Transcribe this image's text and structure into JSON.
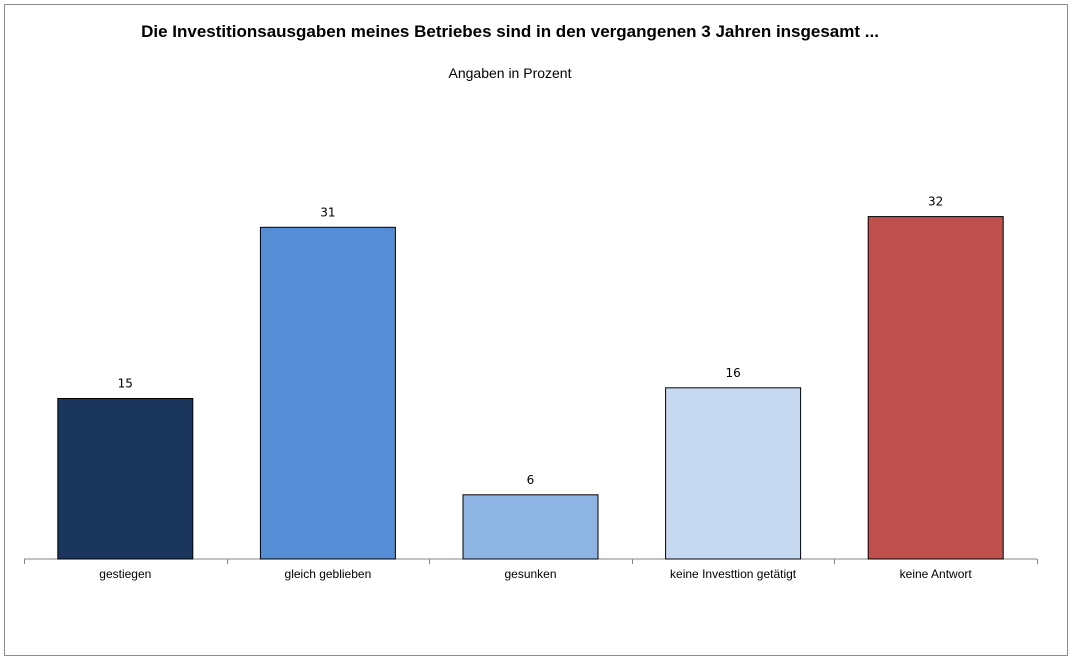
{
  "chart_data": {
    "type": "bar",
    "title": "Die Investitionsausgaben meines Betriebes sind in den vergangenen 3 Jahren insgesamt ...",
    "subtitle": "Angaben in Prozent",
    "categories": [
      "gestiegen",
      "gleich geblieben",
      "gesunken",
      "keine Investtion getätigt",
      "keine Antwort"
    ],
    "values": [
      15,
      31,
      6,
      16,
      32
    ],
    "colors": [
      "#1b365c",
      "#558ed5",
      "#8eb4e3",
      "#c6d9f1",
      "#c0504d"
    ],
    "ylim": [
      0,
      40
    ],
    "grid": false,
    "legend": "none",
    "xlabel": "",
    "ylabel": ""
  }
}
